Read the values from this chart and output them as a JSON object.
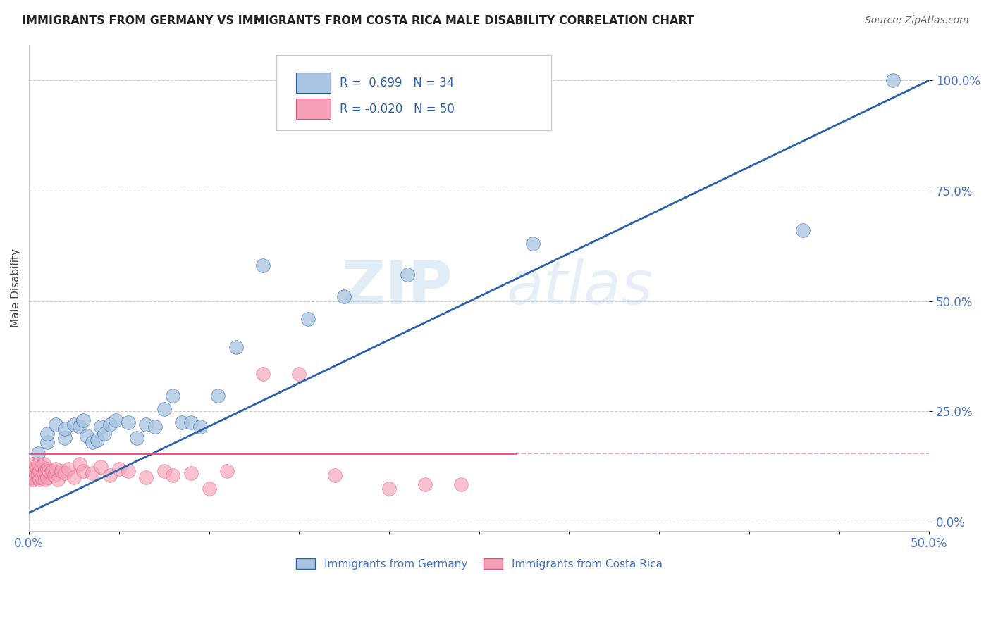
{
  "title": "IMMIGRANTS FROM GERMANY VS IMMIGRANTS FROM COSTA RICA MALE DISABILITY CORRELATION CHART",
  "source": "Source: ZipAtlas.com",
  "ylabel": "Male Disability",
  "r_germany": 0.699,
  "n_germany": 34,
  "r_costa_rica": -0.02,
  "n_costa_rica": 50,
  "color_germany": "#a8c4e0",
  "color_germany_line": "#2962a8",
  "color_costa_rica": "#f4a0b8",
  "color_costa_rica_line": "#e0507a",
  "legend_germany": "Immigrants from Germany",
  "legend_costa_rica": "Immigrants from Costa Rica",
  "watermark_zip": "ZIP",
  "watermark_atlas": "atlas",
  "germany_x": [
    0.005,
    0.01,
    0.01,
    0.015,
    0.02,
    0.02,
    0.025,
    0.028,
    0.03,
    0.032,
    0.035,
    0.038,
    0.04,
    0.042,
    0.045,
    0.048,
    0.055,
    0.06,
    0.065,
    0.07,
    0.075,
    0.08,
    0.085,
    0.09,
    0.095,
    0.105,
    0.115,
    0.13,
    0.155,
    0.175,
    0.21,
    0.28,
    0.43,
    0.48
  ],
  "germany_y": [
    0.155,
    0.18,
    0.2,
    0.22,
    0.19,
    0.21,
    0.22,
    0.215,
    0.23,
    0.195,
    0.18,
    0.185,
    0.215,
    0.2,
    0.22,
    0.23,
    0.225,
    0.19,
    0.22,
    0.215,
    0.255,
    0.285,
    0.225,
    0.225,
    0.215,
    0.285,
    0.395,
    0.58,
    0.46,
    0.51,
    0.56,
    0.63,
    0.66,
    1.0
  ],
  "costa_rica_x": [
    0.001,
    0.001,
    0.002,
    0.002,
    0.003,
    0.003,
    0.004,
    0.004,
    0.005,
    0.005,
    0.005,
    0.006,
    0.006,
    0.007,
    0.007,
    0.008,
    0.008,
    0.009,
    0.009,
    0.01,
    0.01,
    0.011,
    0.012,
    0.013,
    0.014,
    0.015,
    0.016,
    0.018,
    0.02,
    0.022,
    0.025,
    0.028,
    0.03,
    0.035,
    0.04,
    0.045,
    0.05,
    0.055,
    0.065,
    0.075,
    0.08,
    0.09,
    0.1,
    0.11,
    0.13,
    0.15,
    0.17,
    0.2,
    0.22,
    0.24
  ],
  "costa_rica_y": [
    0.095,
    0.115,
    0.1,
    0.13,
    0.095,
    0.115,
    0.105,
    0.125,
    0.1,
    0.11,
    0.13,
    0.095,
    0.115,
    0.1,
    0.125,
    0.11,
    0.13,
    0.095,
    0.115,
    0.1,
    0.12,
    0.115,
    0.11,
    0.115,
    0.105,
    0.12,
    0.095,
    0.115,
    0.11,
    0.12,
    0.1,
    0.13,
    0.115,
    0.11,
    0.125,
    0.105,
    0.12,
    0.115,
    0.1,
    0.115,
    0.105,
    0.11,
    0.075,
    0.115,
    0.335,
    0.335,
    0.105,
    0.075,
    0.085,
    0.085
  ],
  "xlim": [
    0.0,
    0.5
  ],
  "ylim": [
    -0.02,
    1.08
  ],
  "yticks": [
    0.0,
    0.25,
    0.5,
    0.75,
    1.0
  ],
  "ytick_labels": [
    "0.0%",
    "25.0%",
    "50.0%",
    "75.0%",
    "100.0%"
  ],
  "xticks": [
    0.0,
    0.05,
    0.1,
    0.15,
    0.2,
    0.25,
    0.3,
    0.35,
    0.4,
    0.45,
    0.5
  ],
  "xtick_labels": [
    "0.0%",
    "",
    "",
    "",
    "",
    "",
    "",
    "",
    "",
    "",
    "50.0%"
  ],
  "grid_color": "#cccccc",
  "spine_color": "#cccccc"
}
